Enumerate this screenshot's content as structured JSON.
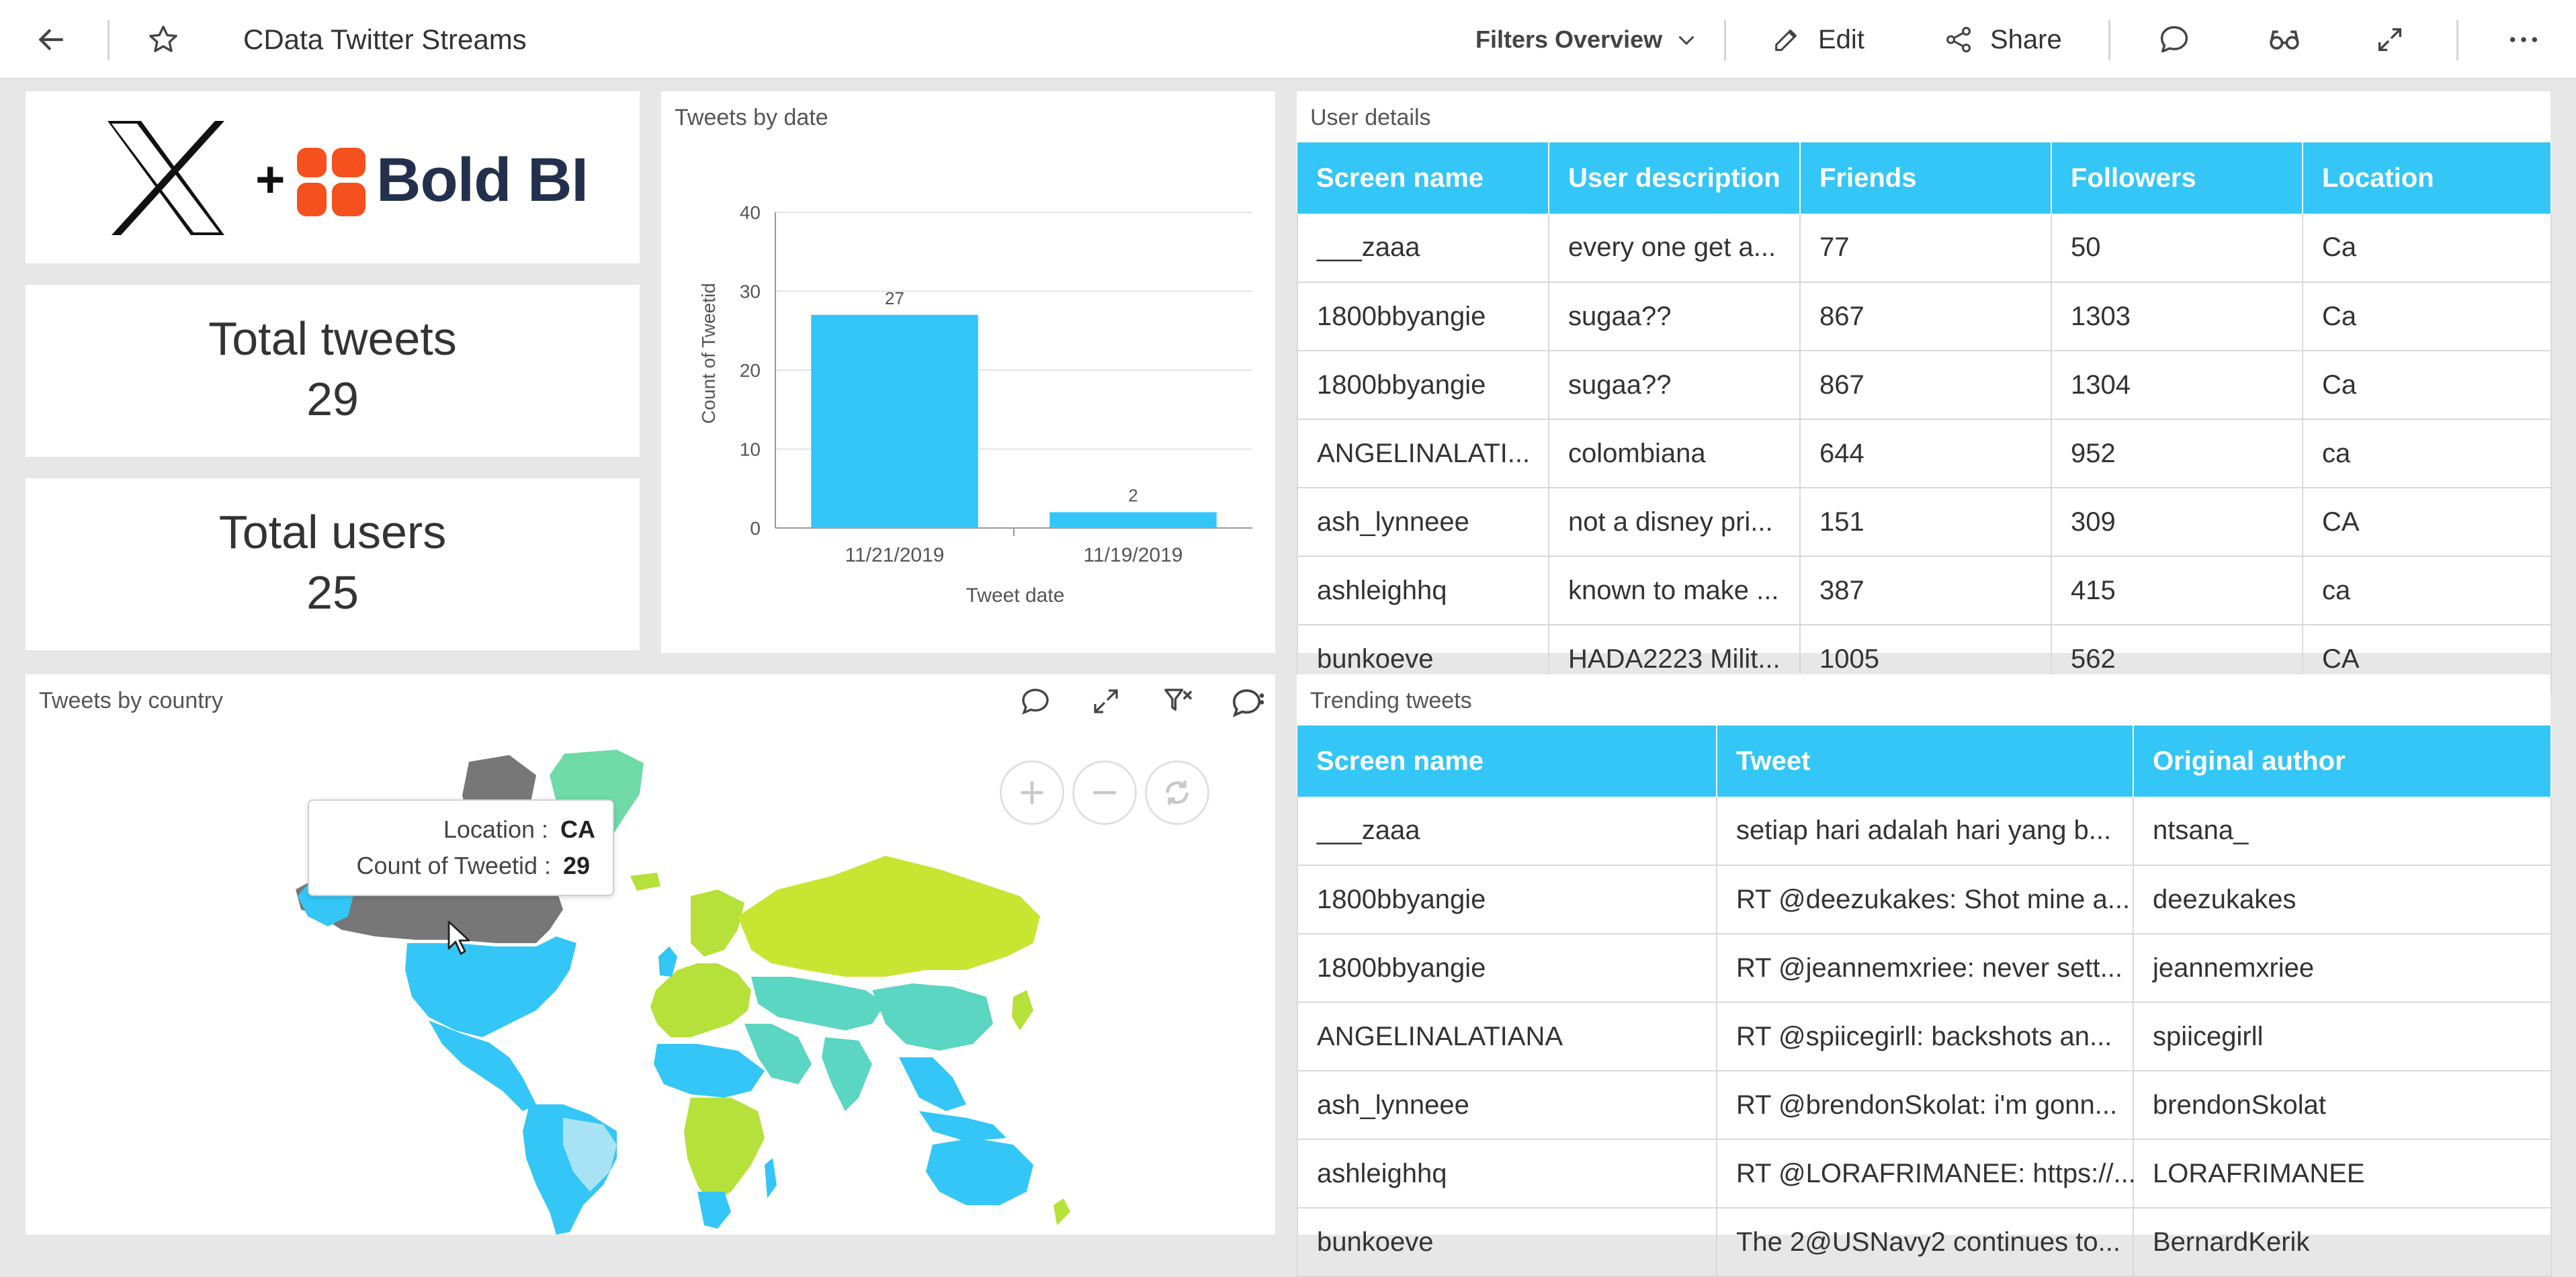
{
  "app": {
    "title": "CData Twitter Streams",
    "filters_label": "Filters Overview",
    "edit_label": "Edit",
    "share_label": "Share"
  },
  "logo": {
    "brand_text": "Bold BI",
    "plus": "+"
  },
  "kpis": {
    "tweets": {
      "label": "Total tweets",
      "value": "29"
    },
    "users": {
      "label": "Total users",
      "value": "25"
    }
  },
  "chart_data": {
    "type": "bar",
    "title": "Tweets by date",
    "xlabel": "Tweet date",
    "ylabel": "Count of Tweetid",
    "categories": [
      "11/21/2019",
      "11/19/2019"
    ],
    "values": [
      27,
      2
    ],
    "ylim": [
      0,
      40
    ],
    "yticks": [
      0,
      10,
      20,
      30,
      40
    ],
    "grid": true,
    "color": "#33c6f7"
  },
  "user_details": {
    "title": "User details",
    "columns": [
      "Screen name",
      "User description",
      "Friends",
      "Followers",
      "Location"
    ],
    "rows": [
      [
        "___zaaa",
        "every one get a...",
        "77",
        "50",
        "Ca"
      ],
      [
        "1800bbyangie",
        "sugaa??",
        "867",
        "1303",
        "Ca"
      ],
      [
        "1800bbyangie",
        "sugaa??",
        "867",
        "1304",
        "Ca"
      ],
      [
        "ANGELINALATI...",
        "colombiana",
        "644",
        "952",
        "ca"
      ],
      [
        "ash_lynneee",
        "not a disney pri...",
        "151",
        "309",
        "CA"
      ],
      [
        "ashleighhq",
        "known to make ...",
        "387",
        "415",
        "ca"
      ],
      [
        "bunkoeve",
        "HADA2223 Milit...",
        "1005",
        "562",
        "CA"
      ]
    ]
  },
  "map": {
    "title": "Tweets by country",
    "tooltip": {
      "location_label": "Location :",
      "location_value": "CA",
      "count_label": "Count of Tweetid :",
      "count_value": "29"
    }
  },
  "trending": {
    "title": "Trending tweets",
    "columns": [
      "Screen name",
      "Tweet",
      "Original author"
    ],
    "rows": [
      [
        "___zaaa",
        "setiap hari adalah hari yang b...",
        "ntsana_"
      ],
      [
        "1800bbyangie",
        "RT @deezukakes: Shot mine a...",
        "deezukakes"
      ],
      [
        "1800bbyangie",
        "RT @jeannemxriee: never sett...",
        "jeannemxriee"
      ],
      [
        "ANGELINALATIANA",
        "RT @spiicegirll: backshots an...",
        "spiicegirll"
      ],
      [
        "ash_lynneee",
        "RT @brendonSkolat: i'm gonn...",
        "brendonSkolat"
      ],
      [
        "ashleighhq",
        "RT @LORAFRIMANEE: https://...",
        "LORAFRIMANEE"
      ],
      [
        "bunkoeve",
        "The 2@USNavy2 continues to...",
        "BernardKerik"
      ]
    ]
  }
}
